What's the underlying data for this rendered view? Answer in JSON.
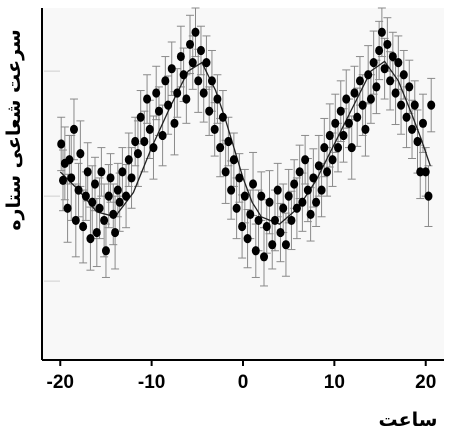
{
  "chart_data": {
    "type": "scatter",
    "title": "",
    "xlabel": "ساعت",
    "ylabel": "سرعت شعاعی ستاره",
    "xlim": [
      -22,
      22
    ],
    "ylim": [
      -1.6,
      1.3
    ],
    "xticks": [
      -20,
      -10,
      0,
      10,
      20
    ],
    "xtick_labels": [
      "-20",
      "-10",
      "0",
      "10",
      "20"
    ],
    "grid": false,
    "series": [
      {
        "style": "points-with-error-bars",
        "color": "#000000",
        "points": [
          {
            "x": -19.9,
            "y": 0.18,
            "err": 0.22
          },
          {
            "x": -19.7,
            "y": -0.12,
            "err": 0.25
          },
          {
            "x": -19.5,
            "y": 0.02,
            "err": 0.3
          },
          {
            "x": -19.2,
            "y": -0.35,
            "err": 0.28
          },
          {
            "x": -19.0,
            "y": 0.05,
            "err": 0.2
          },
          {
            "x": -18.8,
            "y": -0.1,
            "err": 0.35
          },
          {
            "x": -18.5,
            "y": 0.3,
            "err": 0.25
          },
          {
            "x": -18.3,
            "y": -0.45,
            "err": 0.3
          },
          {
            "x": -18.0,
            "y": -0.2,
            "err": 0.22
          },
          {
            "x": -17.8,
            "y": 0.1,
            "err": 0.27
          },
          {
            "x": -17.5,
            "y": -0.5,
            "err": 0.3
          },
          {
            "x": -17.2,
            "y": -0.25,
            "err": 0.2
          },
          {
            "x": -17.0,
            "y": -0.05,
            "err": 0.24
          },
          {
            "x": -16.7,
            "y": -0.6,
            "err": 0.26
          },
          {
            "x": -16.5,
            "y": -0.3,
            "err": 0.3
          },
          {
            "x": -16.2,
            "y": -0.15,
            "err": 0.22
          },
          {
            "x": -16.0,
            "y": -0.55,
            "err": 0.28
          },
          {
            "x": -15.7,
            "y": -0.35,
            "err": 0.25
          },
          {
            "x": -15.5,
            "y": -0.05,
            "err": 0.2
          },
          {
            "x": -15.2,
            "y": -0.45,
            "err": 0.3
          },
          {
            "x": -15.0,
            "y": -0.7,
            "err": 0.22
          },
          {
            "x": -14.7,
            "y": -0.25,
            "err": 0.26
          },
          {
            "x": -14.5,
            "y": -0.1,
            "err": 0.2
          },
          {
            "x": -14.2,
            "y": -0.4,
            "err": 0.25
          },
          {
            "x": -14.0,
            "y": -0.55,
            "err": 0.3
          },
          {
            "x": -13.7,
            "y": -0.2,
            "err": 0.22
          },
          {
            "x": -13.5,
            "y": -0.3,
            "err": 0.24
          },
          {
            "x": -13.2,
            "y": -0.05,
            "err": 0.2
          },
          {
            "x": -12.8,
            "y": -0.25,
            "err": 0.26
          },
          {
            "x": -12.5,
            "y": 0.05,
            "err": 0.22
          },
          {
            "x": -12.2,
            "y": -0.1,
            "err": 0.25
          },
          {
            "x": -11.8,
            "y": 0.2,
            "err": 0.2
          },
          {
            "x": -11.5,
            "y": 0.1,
            "err": 0.27
          },
          {
            "x": -11.2,
            "y": 0.4,
            "err": 0.22
          },
          {
            "x": -10.8,
            "y": 0.2,
            "err": 0.25
          },
          {
            "x": -10.5,
            "y": 0.55,
            "err": 0.2
          },
          {
            "x": -10.2,
            "y": 0.3,
            "err": 0.24
          },
          {
            "x": -9.8,
            "y": 0.15,
            "err": 0.26
          },
          {
            "x": -9.5,
            "y": 0.6,
            "err": 0.22
          },
          {
            "x": -9.2,
            "y": 0.45,
            "err": 0.2
          },
          {
            "x": -8.8,
            "y": 0.25,
            "err": 0.25
          },
          {
            "x": -8.5,
            "y": 0.7,
            "err": 0.2
          },
          {
            "x": -8.2,
            "y": 0.5,
            "err": 0.24
          },
          {
            "x": -7.8,
            "y": 0.8,
            "err": 0.22
          },
          {
            "x": -7.5,
            "y": 0.35,
            "err": 0.26
          },
          {
            "x": -7.2,
            "y": 0.6,
            "err": 0.2
          },
          {
            "x": -6.8,
            "y": 0.9,
            "err": 0.25
          },
          {
            "x": -6.5,
            "y": 0.75,
            "err": 0.22
          },
          {
            "x": -6.2,
            "y": 0.55,
            "err": 0.2
          },
          {
            "x": -5.8,
            "y": 1.0,
            "err": 0.24
          },
          {
            "x": -5.5,
            "y": 0.85,
            "err": 0.22
          },
          {
            "x": -5.2,
            "y": 1.1,
            "err": 0.2
          },
          {
            "x": -4.9,
            "y": 0.7,
            "err": 0.26
          },
          {
            "x": -4.6,
            "y": 0.95,
            "err": 0.2
          },
          {
            "x": -4.3,
            "y": 0.6,
            "err": 0.24
          },
          {
            "x": -4.0,
            "y": 0.85,
            "err": 0.22
          },
          {
            "x": -3.7,
            "y": 0.45,
            "err": 0.2
          },
          {
            "x": -3.4,
            "y": 0.7,
            "err": 0.25
          },
          {
            "x": -3.1,
            "y": 0.3,
            "err": 0.22
          },
          {
            "x": -2.8,
            "y": 0.55,
            "err": 0.2
          },
          {
            "x": -2.5,
            "y": 0.15,
            "err": 0.24
          },
          {
            "x": -2.2,
            "y": 0.4,
            "err": 0.22
          },
          {
            "x": -1.9,
            "y": -0.05,
            "err": 0.26
          },
          {
            "x": -1.6,
            "y": 0.2,
            "err": 0.2
          },
          {
            "x": -1.3,
            "y": -0.2,
            "err": 0.24
          },
          {
            "x": -1.0,
            "y": 0.05,
            "err": 0.22
          },
          {
            "x": -0.7,
            "y": -0.35,
            "err": 0.25
          },
          {
            "x": -0.4,
            "y": -0.1,
            "err": 0.2
          },
          {
            "x": -0.1,
            "y": -0.5,
            "err": 0.26
          },
          {
            "x": 0.2,
            "y": -0.25,
            "err": 0.22
          },
          {
            "x": 0.5,
            "y": -0.6,
            "err": 0.24
          },
          {
            "x": 0.8,
            "y": -0.4,
            "err": 0.2
          },
          {
            "x": 1.1,
            "y": -0.15,
            "err": 0.26
          },
          {
            "x": 1.4,
            "y": -0.7,
            "err": 0.22
          },
          {
            "x": 1.7,
            "y": -0.45,
            "err": 0.25
          },
          {
            "x": 2.0,
            "y": -0.25,
            "err": 0.2
          },
          {
            "x": 2.3,
            "y": -0.75,
            "err": 0.24
          },
          {
            "x": 2.6,
            "y": -0.5,
            "err": 0.22
          },
          {
            "x": 2.9,
            "y": -0.3,
            "err": 0.26
          },
          {
            "x": 3.2,
            "y": -0.65,
            "err": 0.2
          },
          {
            "x": 3.5,
            "y": -0.45,
            "err": 0.25
          },
          {
            "x": 3.8,
            "y": -0.2,
            "err": 0.22
          },
          {
            "x": 4.1,
            "y": -0.55,
            "err": 0.24
          },
          {
            "x": 4.4,
            "y": -0.35,
            "err": 0.2
          },
          {
            "x": 4.7,
            "y": -0.65,
            "err": 0.26
          },
          {
            "x": 5.0,
            "y": -0.25,
            "err": 0.22
          },
          {
            "x": 5.3,
            "y": -0.45,
            "err": 0.24
          },
          {
            "x": 5.6,
            "y": -0.15,
            "err": 0.2
          },
          {
            "x": 5.9,
            "y": -0.35,
            "err": 0.25
          },
          {
            "x": 6.2,
            "y": -0.05,
            "err": 0.22
          },
          {
            "x": 6.5,
            "y": -0.3,
            "err": 0.24
          },
          {
            "x": 6.8,
            "y": 0.05,
            "err": 0.2
          },
          {
            "x": 7.1,
            "y": -0.2,
            "err": 0.26
          },
          {
            "x": 7.4,
            "y": -0.4,
            "err": 0.22
          },
          {
            "x": 7.7,
            "y": -0.1,
            "err": 0.24
          },
          {
            "x": 8.0,
            "y": -0.3,
            "err": 0.2
          },
          {
            "x": 8.3,
            "y": 0.0,
            "err": 0.25
          },
          {
            "x": 8.6,
            "y": -0.2,
            "err": 0.22
          },
          {
            "x": 8.9,
            "y": 0.15,
            "err": 0.24
          },
          {
            "x": 9.2,
            "y": -0.05,
            "err": 0.2
          },
          {
            "x": 9.5,
            "y": 0.25,
            "err": 0.26
          },
          {
            "x": 9.8,
            "y": 0.05,
            "err": 0.22
          },
          {
            "x": 10.1,
            "y": 0.35,
            "err": 0.24
          },
          {
            "x": 10.4,
            "y": 0.15,
            "err": 0.2
          },
          {
            "x": 10.7,
            "y": 0.45,
            "err": 0.25
          },
          {
            "x": 11.0,
            "y": 0.25,
            "err": 0.22
          },
          {
            "x": 11.3,
            "y": 0.55,
            "err": 0.24
          },
          {
            "x": 11.6,
            "y": 0.35,
            "err": 0.2
          },
          {
            "x": 11.9,
            "y": 0.15,
            "err": 0.26
          },
          {
            "x": 12.2,
            "y": 0.6,
            "err": 0.22
          },
          {
            "x": 12.5,
            "y": 0.4,
            "err": 0.24
          },
          {
            "x": 12.8,
            "y": 0.7,
            "err": 0.2
          },
          {
            "x": 13.1,
            "y": 0.5,
            "err": 0.25
          },
          {
            "x": 13.4,
            "y": 0.3,
            "err": 0.22
          },
          {
            "x": 13.7,
            "y": 0.75,
            "err": 0.24
          },
          {
            "x": 14.0,
            "y": 0.55,
            "err": 0.2
          },
          {
            "x": 14.3,
            "y": 0.85,
            "err": 0.26
          },
          {
            "x": 14.6,
            "y": 0.65,
            "err": 0.22
          },
          {
            "x": 14.9,
            "y": 0.95,
            "err": 0.24
          },
          {
            "x": 15.2,
            "y": 1.1,
            "err": 0.2
          },
          {
            "x": 15.5,
            "y": 0.8,
            "err": 0.25
          },
          {
            "x": 15.8,
            "y": 1.0,
            "err": 0.22
          },
          {
            "x": 16.1,
            "y": 0.7,
            "err": 0.24
          },
          {
            "x": 16.4,
            "y": 0.9,
            "err": 0.2
          },
          {
            "x": 16.7,
            "y": 0.6,
            "err": 0.26
          },
          {
            "x": 17.0,
            "y": 0.85,
            "err": 0.22
          },
          {
            "x": 17.3,
            "y": 0.5,
            "err": 0.24
          },
          {
            "x": 17.6,
            "y": 0.75,
            "err": 0.2
          },
          {
            "x": 17.9,
            "y": 0.4,
            "err": 0.25
          },
          {
            "x": 18.2,
            "y": 0.65,
            "err": 0.22
          },
          {
            "x": 18.5,
            "y": 0.3,
            "err": 0.24
          },
          {
            "x": 18.8,
            "y": 0.5,
            "err": 0.2
          },
          {
            "x": 19.1,
            "y": 0.2,
            "err": 0.26
          },
          {
            "x": 19.4,
            "y": -0.05,
            "err": 0.22
          },
          {
            "x": 19.7,
            "y": 0.35,
            "err": 0.24
          },
          {
            "x": 20.0,
            "y": -0.05,
            "err": 0.2
          },
          {
            "x": 20.3,
            "y": -0.25,
            "err": 0.25
          },
          {
            "x": 20.6,
            "y": 0.5,
            "err": 0.22
          }
        ]
      },
      {
        "style": "fit-line",
        "color": "#000000",
        "x": [
          -20,
          -18,
          -16,
          -14,
          -12,
          -10,
          -8,
          -6,
          -4.5,
          -3,
          -2,
          -1,
          0,
          1,
          2,
          4,
          6,
          8,
          10,
          12,
          14,
          15.5,
          17,
          18.5,
          19.5,
          20.5
        ],
        "y": [
          -0.05,
          -0.2,
          -0.38,
          -0.42,
          -0.22,
          0.15,
          0.48,
          0.78,
          0.85,
          0.62,
          0.4,
          0.15,
          -0.1,
          -0.3,
          -0.42,
          -0.48,
          -0.35,
          -0.12,
          0.18,
          0.48,
          0.78,
          0.86,
          0.7,
          0.42,
          0.22,
          0.0
        ]
      }
    ]
  }
}
